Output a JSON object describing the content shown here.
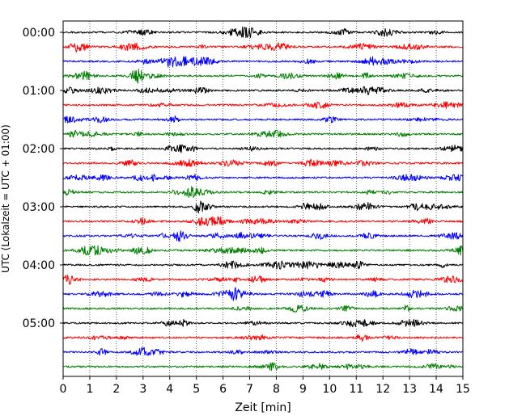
{
  "chart_data": {
    "type": "line",
    "title": "",
    "xlabel": "Zeit  [min]",
    "ylabel": "UTC (Lokalzeit = UTC + 01:00)",
    "xlim": [
      0,
      15
    ],
    "x_ticks": [
      "0",
      "1",
      "2",
      "3",
      "4",
      "5",
      "6",
      "7",
      "8",
      "9",
      "10",
      "11",
      "12",
      "13",
      "14",
      "15"
    ],
    "y_ticks": [
      "00:00",
      "01:00",
      "02:00",
      "03:00",
      "04:00",
      "05:00"
    ],
    "rows_per_hour": 4,
    "minutes_per_row": 15,
    "grid": "vertical dotted at each minute",
    "trace_colors": [
      "#000000",
      "#ff0000",
      "#0000ff",
      "#008000"
    ],
    "rows": [
      {
        "start": "00:00",
        "color": "#000000"
      },
      {
        "start": "00:15",
        "color": "#ff0000"
      },
      {
        "start": "00:30",
        "color": "#0000ff"
      },
      {
        "start": "00:45",
        "color": "#008000"
      },
      {
        "start": "01:00",
        "color": "#000000"
      },
      {
        "start": "01:15",
        "color": "#ff0000"
      },
      {
        "start": "01:30",
        "color": "#0000ff"
      },
      {
        "start": "01:45",
        "color": "#008000"
      },
      {
        "start": "02:00",
        "color": "#000000"
      },
      {
        "start": "02:15",
        "color": "#ff0000"
      },
      {
        "start": "02:30",
        "color": "#0000ff"
      },
      {
        "start": "02:45",
        "color": "#008000"
      },
      {
        "start": "03:00",
        "color": "#000000"
      },
      {
        "start": "03:15",
        "color": "#ff0000"
      },
      {
        "start": "03:30",
        "color": "#0000ff"
      },
      {
        "start": "03:45",
        "color": "#008000"
      },
      {
        "start": "04:00",
        "color": "#000000"
      },
      {
        "start": "04:15",
        "color": "#ff0000"
      },
      {
        "start": "04:30",
        "color": "#0000ff"
      },
      {
        "start": "04:45",
        "color": "#008000"
      },
      {
        "start": "05:00",
        "color": "#000000"
      },
      {
        "start": "05:15",
        "color": "#ff0000"
      },
      {
        "start": "05:30",
        "color": "#0000ff"
      },
      {
        "start": "05:45",
        "color": "#008000"
      }
    ]
  }
}
